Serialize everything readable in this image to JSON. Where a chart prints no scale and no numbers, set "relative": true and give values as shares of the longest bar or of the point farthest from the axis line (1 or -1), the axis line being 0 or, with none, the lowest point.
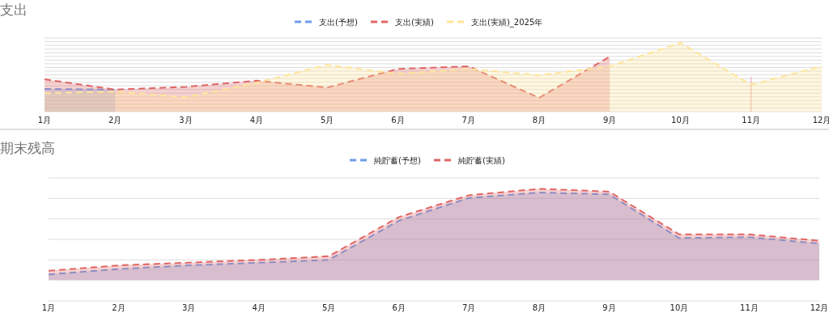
{
  "chart_data": [
    {
      "type": "area",
      "title": "支出",
      "relative": true,
      "categories": [
        "1月",
        "2月",
        "3月",
        "4月",
        "5月",
        "6月",
        "7月",
        "8月",
        "9月",
        "10月",
        "11月",
        "12月"
      ],
      "series": [
        {
          "name": "支出(予想)",
          "color": "#6d9eeb",
          "values": [
            0.33,
            0.32,
            null,
            null,
            null,
            null,
            null,
            null,
            null,
            null,
            null,
            null
          ]
        },
        {
          "name": "支出(実績)",
          "color": "#e06666",
          "values": [
            0.47,
            0.32,
            0.36,
            0.45,
            0.35,
            0.62,
            0.66,
            0.2,
            0.8,
            null,
            0.51,
            null
          ]
        },
        {
          "name": "支出(実績)_2025年",
          "color": "#ffe599",
          "values": [
            0.27,
            0.29,
            0.21,
            0.42,
            0.68,
            0.55,
            0.62,
            0.53,
            0.66,
            1,
            0.39,
            0.66
          ]
        }
      ],
      "grid": "y",
      "legend": "top",
      "marker": "none",
      "line_style": "dashed"
    },
    {
      "type": "area",
      "title": "期末残高",
      "relative": true,
      "categories": [
        "1月",
        "2月",
        "3月",
        "4月",
        "5月",
        "6月",
        "7月",
        "8月",
        "9月",
        "10月",
        "11月",
        "12月"
      ],
      "series": [
        {
          "name": "純貯蓄(予想)",
          "color": "#6d9eeb",
          "values": [
            0.06,
            0.12,
            0.16,
            0.19,
            0.22,
            0.65,
            0.9,
            0.96,
            0.94,
            0.46,
            0.47,
            0.4
          ]
        },
        {
          "name": "純貯蓄(実績)",
          "color": "#e06666",
          "values": [
            0.1,
            0.16,
            0.19,
            0.22,
            0.26,
            0.69,
            0.93,
            1,
            0.97,
            0.5,
            0.5,
            0.43
          ]
        }
      ],
      "grid": "y",
      "legend": "top",
      "marker": "none",
      "line_style": "dashed"
    }
  ]
}
